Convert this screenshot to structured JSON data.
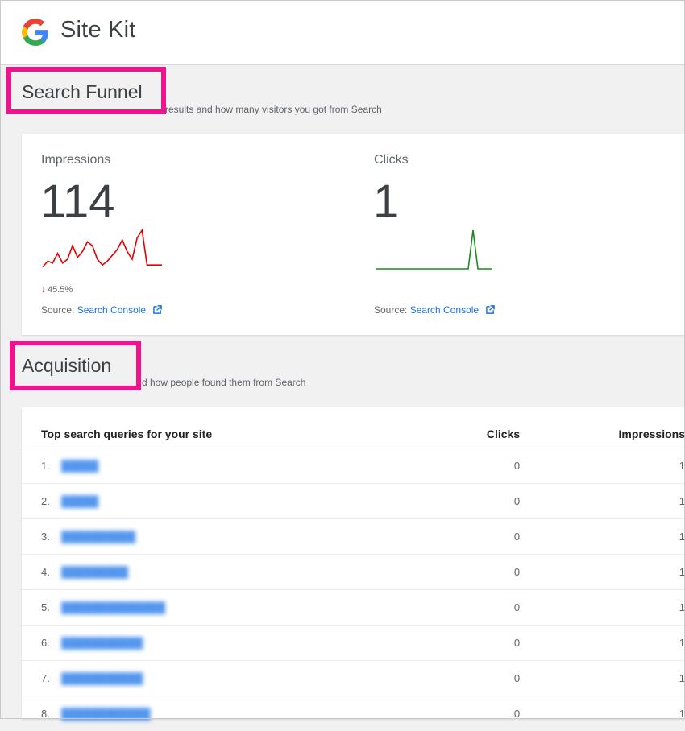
{
  "app": {
    "title": "Site Kit"
  },
  "colors": {
    "accent": "#1a73e8",
    "highlight": "#f0148c",
    "impressions_line": "#e00000",
    "clicks_line": "#1a8c1a"
  },
  "search_funnel": {
    "title": "Search Funnel",
    "description": "results and how many visitors you got from Search",
    "impressions": {
      "label": "Impressions",
      "value": "114",
      "change": "45.5%",
      "change_direction": "down",
      "sparkline": [
        0.95,
        0.8,
        0.85,
        0.6,
        0.85,
        0.75,
        0.4,
        0.7,
        0.55,
        0.3,
        0.4,
        0.75,
        0.9,
        0.8,
        0.65,
        0.5,
        0.25,
        0.55,
        0.75,
        0.2,
        0.0,
        0.9,
        0.9,
        0.9,
        0.9
      ],
      "source_prefix": "Source:",
      "source_link": "Search Console"
    },
    "clicks": {
      "label": "Clicks",
      "value": "1",
      "sparkline": [
        1,
        1,
        1,
        1,
        1,
        1,
        1,
        1,
        1,
        1,
        1,
        1,
        1,
        1,
        1,
        1,
        1,
        1,
        1,
        1,
        0,
        1,
        1,
        1,
        1
      ],
      "source_prefix": "Source:",
      "source_link": "Search Console"
    }
  },
  "acquisition": {
    "title": "Acquisition",
    "description": "d how people found them from Search",
    "table": {
      "headers": [
        "Top search queries for your site",
        "Clicks",
        "Impressions"
      ],
      "rows": [
        {
          "num": "1.",
          "query": "█████",
          "clicks": "0",
          "impressions": "1"
        },
        {
          "num": "2.",
          "query": "█████",
          "clicks": "0",
          "impressions": "1"
        },
        {
          "num": "3.",
          "query": "██████████",
          "clicks": "0",
          "impressions": "1"
        },
        {
          "num": "4.",
          "query": "█████████",
          "clicks": "0",
          "impressions": "1"
        },
        {
          "num": "5.",
          "query": "██████████████",
          "clicks": "0",
          "impressions": "1"
        },
        {
          "num": "6.",
          "query": "███████████",
          "clicks": "0",
          "impressions": "1"
        },
        {
          "num": "7.",
          "query": "███████████",
          "clicks": "0",
          "impressions": "1"
        },
        {
          "num": "8.",
          "query": "████████████",
          "clicks": "0",
          "impressions": "1"
        }
      ]
    }
  }
}
